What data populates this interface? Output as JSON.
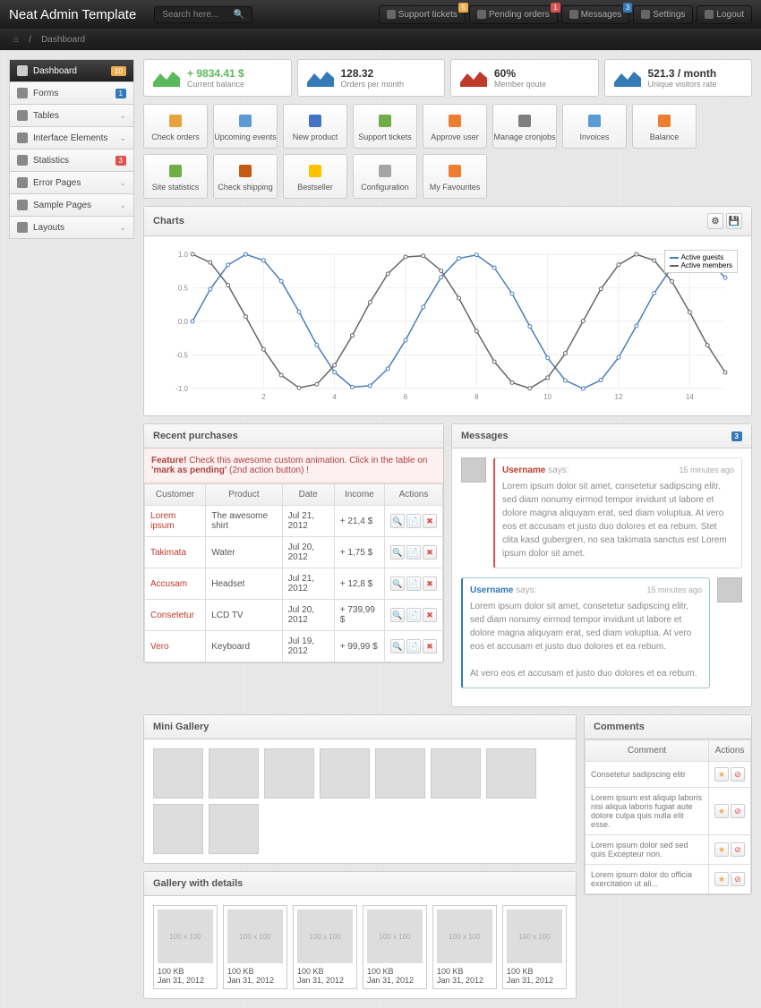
{
  "brand": "Neat Admin Template",
  "search_placeholder": "Search here...",
  "topbar": [
    {
      "label": "Support tickets",
      "badge": "5",
      "badge_color": "orange"
    },
    {
      "label": "Pending orders",
      "badge": "1",
      "badge_color": "red"
    },
    {
      "label": "Messages",
      "badge": "3",
      "badge_color": "blue"
    },
    {
      "label": "Settings"
    },
    {
      "label": "Logout"
    }
  ],
  "breadcrumb": {
    "home": "⌂",
    "sep": "/",
    "current": "Dashboard"
  },
  "nav": [
    {
      "label": "Dashboard",
      "active": true,
      "badge": "10",
      "badge_class": ""
    },
    {
      "label": "Forms",
      "badge": "1",
      "badge_class": "blue"
    },
    {
      "label": "Tables",
      "chev": true
    },
    {
      "label": "Interface Elements",
      "chev": true
    },
    {
      "label": "Statistics",
      "badge": "3",
      "badge_class": "red"
    },
    {
      "label": "Error Pages",
      "chev": true
    },
    {
      "label": "Sample Pages",
      "chev": true
    },
    {
      "label": "Layouts",
      "chev": true
    }
  ],
  "stats": [
    {
      "value": "+ 9834.41 $",
      "label": "Current balance",
      "color": "green",
      "icon_color": "#5cb85c"
    },
    {
      "value": "128.32",
      "label": "Orders per month",
      "icon_color": "#337ab7"
    },
    {
      "value": "60%",
      "label": "Member qoute",
      "icon_color": "#c0392b"
    },
    {
      "value": "521.3 / month",
      "label": "Unique visitors rate",
      "icon_color": "#337ab7"
    }
  ],
  "shortcuts": [
    "Check orders",
    "Upcoming events",
    "New product",
    "Support tickets",
    "Approve user",
    "Manage cronjobs",
    "Invoices",
    "Balance",
    "Site statistics",
    "Check shipping",
    "Bestseller",
    "Configuration",
    "My Favourites"
  ],
  "shortcut_colors": [
    "#e8a33d",
    "#5b9bd5",
    "#4472c4",
    "#70ad47",
    "#ed7d31",
    "#7f7f7f",
    "#5b9bd5",
    "#ed7d31",
    "#70ad47",
    "#c55a11",
    "#ffc000",
    "#a5a5a5",
    "#ed7d31"
  ],
  "charts": {
    "title": "Charts",
    "type": "line",
    "xlim": [
      0,
      15
    ],
    "ylim": [
      -1.0,
      1.0
    ],
    "xticks": [
      2,
      4,
      6,
      8,
      10,
      12,
      14
    ],
    "yticks": [
      -1.0,
      -0.5,
      0.0,
      0.5,
      1.0
    ],
    "grid_color": "#eeeeee",
    "series": [
      {
        "name": "Active guests",
        "color": "#4a7ebb",
        "fn": "sin",
        "amp": 1,
        "period": 6.28,
        "phase": 0
      },
      {
        "name": "Active members",
        "color": "#666666",
        "fn": "cos",
        "amp": 1,
        "period": 6.28,
        "phase": 0
      }
    ]
  },
  "purchases": {
    "title": "Recent purchases",
    "alert": {
      "bold": "Feature!",
      "text": " Check this awesome custom animation. Click in the table on ",
      "bold2": "'mark as pending'",
      "text2": " (2nd action button) !"
    },
    "columns": [
      "Customer",
      "Product",
      "Date",
      "Income",
      "Actions"
    ],
    "rows": [
      [
        "Lorem ipsum",
        "The awesome shirt",
        "Jul 21, 2012",
        "+ 21,4 $"
      ],
      [
        "Takimata",
        "Water",
        "Jul 20, 2012",
        "+ 1,75 $"
      ],
      [
        "Accusam",
        "Headset",
        "Jul 21, 2012",
        "+ 12,8 $"
      ],
      [
        "Consetetur",
        "LCD TV",
        "Jul 20, 2012",
        "+ 739,99 $"
      ],
      [
        "Vero",
        "Keyboard",
        "Jul 19, 2012",
        "+ 99,99 $"
      ]
    ]
  },
  "messages": {
    "title": "Messages",
    "badge": "3",
    "items": [
      {
        "user": "Username",
        "says": " says:",
        "time": "15 minutes ago",
        "text": "Lorem ipsum dolor sit amet, consetetur sadipscing elitr, sed diam nonumy eirmod tempor invidunt ut labore et dolore magna aliquyam erat, sed diam voluptua. At vero eos et accusam et justo duo dolores et ea rebum. Stet clita kasd gubergren, no sea takimata sanctus est Lorem ipsum dolor sit amet.",
        "style": "red"
      },
      {
        "user": "Username",
        "says": " says:",
        "time": "15 minutes ago",
        "text": "Lorem ipsum dolor sit amet, consetetur sadipscing elitr, sed diam nonumy eirmod tempor invidunt ut labore et dolore magna aliquyam erat, sed diam voluptua. At vero eos et accusam et justo duo dolores et ea rebum.\n\nAt vero eos et accusam et justo duo dolores et ea rebum.",
        "style": "blue"
      }
    ]
  },
  "mini_gallery": {
    "title": "Mini Gallery",
    "count": 9,
    "placeholder": ""
  },
  "gallery_details": {
    "title": "Gallery with details",
    "placeholder": "100 x 100",
    "items": [
      {
        "size": "100 KB",
        "date": "Jan 31, 2012"
      },
      {
        "size": "100 KB",
        "date": "Jan 31, 2012"
      },
      {
        "size": "100 KB",
        "date": "Jan 31, 2012"
      },
      {
        "size": "100 KB",
        "date": "Jan 31, 2012"
      },
      {
        "size": "100 KB",
        "date": "Jan 31, 2012"
      },
      {
        "size": "100 KB",
        "date": "Jan 31, 2012"
      }
    ]
  },
  "comments": {
    "title": "Comments",
    "columns": [
      "Comment",
      "Actions"
    ],
    "rows": [
      "Consetetur sadipscing elitr",
      "Lorem ipsum est aliquip laboris nisi aliqua laboris fugiat aute dolore culpa quis nulla elit esse.",
      "Lorem ipsum dolor sed sed quis Excepteur non.",
      "Lorem ipsum dolor do officia exercitation ut ali..."
    ]
  }
}
